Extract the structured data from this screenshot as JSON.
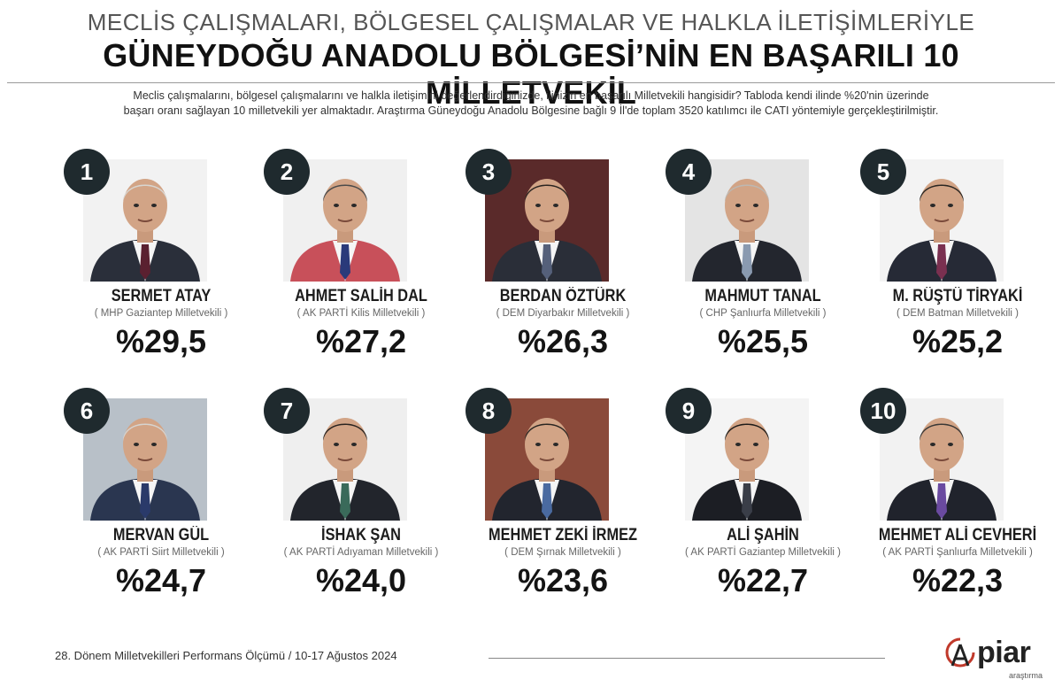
{
  "header": {
    "supertitle": "MECLİS ÇALIŞMALARI, BÖLGESEL ÇALIŞMALAR VE HALKLA İLETİŞİMLERİYLE",
    "title": "GÜNEYDOĞU ANADOLU BÖLGESİ’NİN EN BAŞARILI 10 MİLLETVEKİL",
    "intro_line1": "Meclis çalışmalarını, bölgesel çalışmalarını  ve halkla iletişimini değerlendirdiğinizde, ilinizin en başarılı Milletvekili hangisidir? Tabloda kendi ilinde %20'nin üzerinde",
    "intro_line2": "başarı oranı sağlayan 10 milletvekili yer almaktadır. Araştırma Güneydoğu Anadolu Bölgesine bağlı 9 İl'de toplam 3520 katılımcı ile  CATI yöntemiyle gerçekleştirilmiştir."
  },
  "deputies": [
    {
      "rank": "1",
      "name": "SERMET ATAY",
      "party": "( MHP Gaziantep Milletvekili )",
      "score": "%29,5",
      "bg": "#f2f2f2",
      "suit": "#2a2f3a",
      "tie": "#5a2030",
      "hair": "#d8d6d2"
    },
    {
      "rank": "2",
      "name": "AHMET SALİH DAL",
      "party": "( AK PARTİ Kilis Milletvekili )",
      "score": "%27,2",
      "bg": "#f0f0f0",
      "suit": "#c8505a",
      "tie": "#2a3a7a",
      "hair": "#4a4a4a"
    },
    {
      "rank": "3",
      "name": "BERDAN ÖZTÜRK",
      "party": "( DEM Diyarbakır Milletvekili )",
      "score": "%26,3",
      "bg": "#5a2a2a",
      "suit": "#2a2e38",
      "tie": "#55607a",
      "hair": "#2a2420"
    },
    {
      "rank": "4",
      "name": "MAHMUT TANAL",
      "party": "( CHP Şanlıurfa Milletvekili )",
      "score": "%25,5",
      "bg": "#e4e4e4",
      "suit": "#23262e",
      "tie": "#8a9ab0",
      "hair": "#bdb8b2"
    },
    {
      "rank": "5",
      "name": "M. RÜŞTÜ TİRYAKİ",
      "party": "( DEM Batman Milletvekili )",
      "score": "%25,2",
      "bg": "#f3f3f3",
      "suit": "#262a36",
      "tie": "#7a3050",
      "hair": "#2a2622"
    },
    {
      "rank": "6",
      "name": "MERVAN GÜL",
      "party": "( AK PARTİ Siirt Milletvekili )",
      "score": "%24,7",
      "bg": "#b8c0c8",
      "suit": "#2a3650",
      "tie": "#2a3a6a",
      "hair": "#d6d4d0"
    },
    {
      "rank": "7",
      "name": "İSHAK ŞAN",
      "party": "( AK PARTİ Adıyaman Milletvekili )",
      "score": "%24,0",
      "bg": "#efefef",
      "suit": "#22252c",
      "tie": "#3a6a5a",
      "hair": "#2a2420"
    },
    {
      "rank": "8",
      "name": "MEHMET ZEKİ İRMEZ",
      "party": "( DEM Şırnak Milletvekili )",
      "score": "%23,6",
      "bg": "#8a4a3a",
      "suit": "#22252e",
      "tie": "#4a6aa0",
      "hair": "#2a2622"
    },
    {
      "rank": "9",
      "name": "ALİ ŞAHİN",
      "party": "( AK PARTİ Gaziantep Milletvekili )",
      "score": "%22,7",
      "bg": "#f4f4f4",
      "suit": "#1c1e24",
      "tie": "#3a3e48",
      "hair": "#1e1c1a"
    },
    {
      "rank": "10",
      "name": "MEHMET ALİ CEVHERİ",
      "party": "( AK PARTİ Şanlıurfa Milletvekili )",
      "score": "%22,3",
      "bg": "#f2f2f2",
      "suit": "#20232c",
      "tie": "#6a4aa0",
      "hair": "#3a3836"
    }
  ],
  "footer": {
    "text": "28. Dönem Milletvekilleri Performans Ölçümü / 10-17 Ağustos 2024",
    "logo_word": "piar",
    "logo_sub": "araştırma"
  }
}
